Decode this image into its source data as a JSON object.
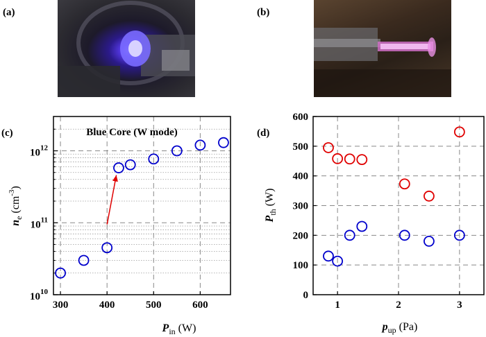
{
  "panels": {
    "a": "(a)",
    "b": "(b)",
    "c": "(c)",
    "d": "(d)"
  },
  "chart_data": [
    {
      "panel": "(c)",
      "type": "scatter",
      "annotation": "Blue Core (W mode)",
      "xlabel_main": "P",
      "xlabel_sub": "in",
      "xlabel_unit": "(W)",
      "ylabel_main": "n",
      "ylabel_sub": "e",
      "ylabel_unit": "(cm",
      "ylabel_exp": "-3",
      "ylabel_close": ")",
      "xlim": [
        285,
        665
      ],
      "ylim": [
        10000000000.0,
        3000000000000.0
      ],
      "yscale": "log",
      "xticks": [
        "300",
        "400",
        "500",
        "600"
      ],
      "yticks": [
        {
          "base": "10",
          "exp": "10"
        },
        {
          "base": "10",
          "exp": "11"
        },
        {
          "base": "10",
          "exp": "12"
        }
      ],
      "grid": true,
      "series": [
        {
          "color": "#0000cc",
          "marker": "open-circle",
          "x": [
            300,
            350,
            400,
            425,
            450,
            500,
            550,
            600,
            650
          ],
          "y": [
            20000000000.0,
            30000000000.0,
            45000000000.0,
            580000000000.0,
            640000000000.0,
            770000000000.0,
            1000000000000.0,
            1200000000000.0,
            1300000000000.0
          ]
        }
      ],
      "arrow": {
        "color": "#e00000",
        "from": [
          400,
          95000000000.0
        ],
        "to": [
          420,
          460000000000.0
        ]
      }
    },
    {
      "panel": "(d)",
      "type": "scatter",
      "xlabel_main": "p",
      "xlabel_sub": "up",
      "xlabel_unit": "(Pa)",
      "ylabel_main": "P",
      "ylabel_sub": "th",
      "ylabel_unit": "(W)",
      "xlim": [
        0.6,
        3.4
      ],
      "ylim": [
        0,
        600
      ],
      "xticks": [
        "1",
        "2",
        "3"
      ],
      "yticks": [
        "0",
        "100",
        "200",
        "300",
        "400",
        "500",
        "600"
      ],
      "grid": true,
      "series": [
        {
          "color": "#e00000",
          "marker": "open-circle",
          "x": [
            0.85,
            1.0,
            1.2,
            1.4,
            2.1,
            2.5,
            3.0
          ],
          "y": [
            495,
            458,
            457,
            455,
            373,
            332,
            548
          ]
        },
        {
          "color": "#0000cc",
          "marker": "open-circle",
          "x": [
            0.85,
            1.0,
            1.2,
            1.4,
            2.1,
            2.5,
            3.0
          ],
          "y": [
            130,
            113,
            200,
            230,
            200,
            180,
            200
          ]
        }
      ]
    }
  ]
}
